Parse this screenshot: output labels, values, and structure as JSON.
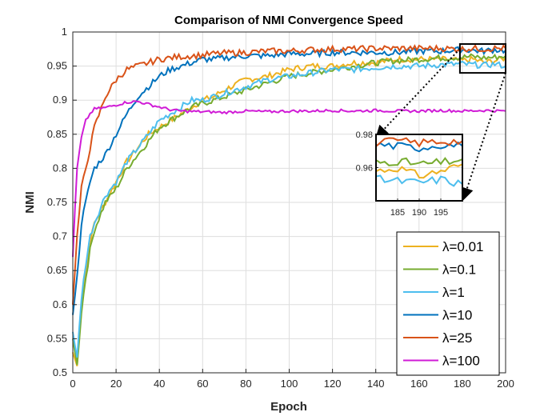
{
  "chart_data": {
    "type": "line",
    "title": "Comparison of NMI Convergence Speed",
    "xlabel": "Epoch",
    "ylabel": "NMI",
    "xlim": [
      0,
      200
    ],
    "ylim": [
      0.5,
      1.0
    ],
    "x_ticks": [
      "0",
      "20",
      "40",
      "60",
      "80",
      "100",
      "120",
      "140",
      "160",
      "180",
      "200"
    ],
    "y_ticks": [
      "0.5",
      "0.55",
      "0.6",
      "0.65",
      "0.7",
      "0.75",
      "0.8",
      "0.85",
      "0.9",
      "0.95",
      "1"
    ],
    "grid": true,
    "legend_position": "bottom-right",
    "series": [
      {
        "name": "λ=0.01",
        "color": "#EDB120",
        "x": [
          0,
          2,
          4,
          6,
          8,
          10,
          15,
          20,
          25,
          30,
          35,
          40,
          45,
          50,
          55,
          60,
          65,
          70,
          80,
          90,
          100,
          110,
          120,
          130,
          140,
          150,
          160,
          170,
          180,
          185,
          190,
          195,
          200
        ],
        "y": [
          0.53,
          0.51,
          0.6,
          0.65,
          0.69,
          0.72,
          0.75,
          0.78,
          0.81,
          0.83,
          0.85,
          0.86,
          0.87,
          0.88,
          0.89,
          0.9,
          0.905,
          0.915,
          0.93,
          0.935,
          0.945,
          0.95,
          0.95,
          0.955,
          0.955,
          0.96,
          0.96,
          0.96,
          0.958,
          0.96,
          0.955,
          0.958,
          0.962
        ]
      },
      {
        "name": "λ=0.1",
        "color": "#77AC30",
        "x": [
          0,
          2,
          4,
          6,
          8,
          10,
          15,
          20,
          25,
          30,
          35,
          40,
          45,
          50,
          55,
          60,
          65,
          70,
          80,
          90,
          100,
          110,
          120,
          130,
          140,
          150,
          160,
          170,
          180,
          185,
          190,
          195,
          200
        ],
        "y": [
          0.55,
          0.51,
          0.59,
          0.64,
          0.68,
          0.71,
          0.75,
          0.77,
          0.8,
          0.82,
          0.84,
          0.86,
          0.87,
          0.88,
          0.89,
          0.895,
          0.9,
          0.905,
          0.915,
          0.925,
          0.935,
          0.94,
          0.945,
          0.95,
          0.955,
          0.958,
          0.96,
          0.962,
          0.963,
          0.964,
          0.962,
          0.963,
          0.965
        ]
      },
      {
        "name": "λ=1",
        "color": "#4DBEEE",
        "x": [
          0,
          2,
          4,
          6,
          8,
          10,
          15,
          20,
          25,
          30,
          35,
          40,
          45,
          50,
          55,
          60,
          65,
          70,
          80,
          90,
          100,
          110,
          120,
          130,
          140,
          150,
          160,
          170,
          180,
          185,
          190,
          195,
          200
        ],
        "y": [
          0.56,
          0.52,
          0.61,
          0.66,
          0.7,
          0.72,
          0.76,
          0.78,
          0.81,
          0.83,
          0.85,
          0.87,
          0.88,
          0.89,
          0.9,
          0.9,
          0.905,
          0.91,
          0.92,
          0.93,
          0.935,
          0.94,
          0.945,
          0.945,
          0.948,
          0.95,
          0.95,
          0.952,
          0.953,
          0.952,
          0.951,
          0.953,
          0.95
        ]
      },
      {
        "name": "λ=10",
        "color": "#0072BD",
        "x": [
          0,
          2,
          4,
          6,
          8,
          10,
          15,
          20,
          25,
          30,
          35,
          40,
          45,
          50,
          55,
          60,
          65,
          70,
          80,
          90,
          100,
          110,
          120,
          130,
          140,
          150,
          160,
          170,
          180,
          185,
          190,
          195,
          200
        ],
        "y": [
          0.585,
          0.64,
          0.72,
          0.75,
          0.78,
          0.8,
          0.82,
          0.85,
          0.88,
          0.905,
          0.92,
          0.935,
          0.945,
          0.95,
          0.955,
          0.96,
          0.96,
          0.962,
          0.965,
          0.965,
          0.968,
          0.968,
          0.97,
          0.97,
          0.97,
          0.97,
          0.972,
          0.972,
          0.974,
          0.973,
          0.972,
          0.974,
          0.973
        ]
      },
      {
        "name": "λ=25",
        "color": "#D95319",
        "x": [
          0,
          2,
          4,
          6,
          8,
          10,
          15,
          20,
          25,
          30,
          35,
          40,
          45,
          50,
          55,
          60,
          65,
          70,
          80,
          90,
          100,
          110,
          120,
          130,
          140,
          150,
          160,
          170,
          180,
          185,
          190,
          195,
          200
        ],
        "y": [
          0.6,
          0.7,
          0.77,
          0.8,
          0.83,
          0.86,
          0.905,
          0.93,
          0.945,
          0.95,
          0.955,
          0.96,
          0.962,
          0.964,
          0.965,
          0.966,
          0.968,
          0.969,
          0.97,
          0.972,
          0.972,
          0.974,
          0.975,
          0.975,
          0.976,
          0.976,
          0.976,
          0.976,
          0.975,
          0.976,
          0.975,
          0.976,
          0.976
        ]
      },
      {
        "name": "λ=100",
        "color": "#D01BD6",
        "x": [
          0,
          1,
          2,
          4,
          6,
          8,
          10,
          15,
          20,
          25,
          30,
          35,
          40,
          45,
          50,
          60,
          70,
          80,
          90,
          100,
          110,
          120,
          130,
          140,
          150,
          160,
          170,
          180,
          190,
          200
        ],
        "y": [
          0.67,
          0.74,
          0.8,
          0.845,
          0.87,
          0.88,
          0.887,
          0.889,
          0.893,
          0.897,
          0.898,
          0.894,
          0.89,
          0.886,
          0.884,
          0.883,
          0.882,
          0.884,
          0.883,
          0.884,
          0.884,
          0.885,
          0.884,
          0.885,
          0.884,
          0.884,
          0.885,
          0.884,
          0.885,
          0.884
        ]
      }
    ],
    "inset": {
      "xlim": [
        180,
        200
      ],
      "ylim": [
        0.94,
        0.98
      ],
      "x_ticks": [
        "185",
        "190",
        "195"
      ],
      "y_ticks": [
        "0.96",
        "0.98"
      ]
    }
  }
}
